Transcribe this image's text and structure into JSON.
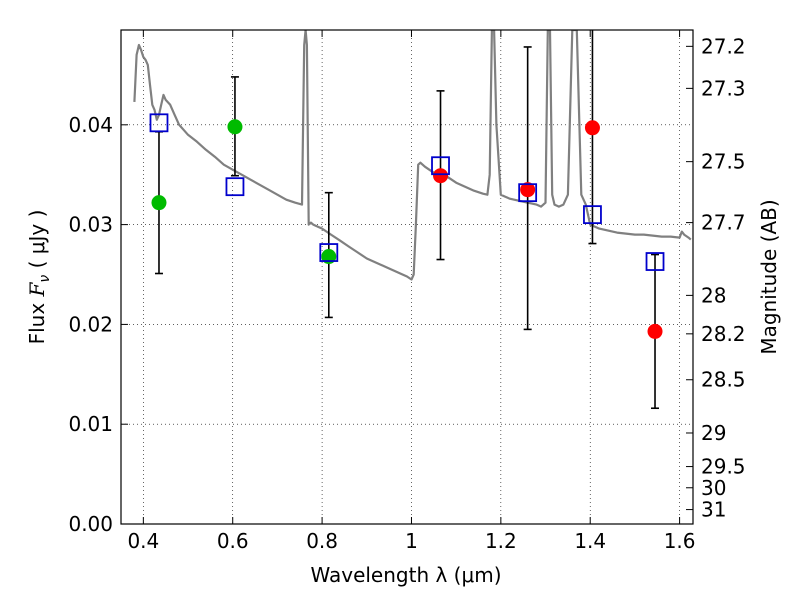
{
  "chart_data": {
    "type": "scatter",
    "title": "",
    "xlabel": "Wavelength  λ (μm)",
    "ylabel": "Flux  F_ν  ( μJy )",
    "ylabel_parts": {
      "prefix": "Flux  ",
      "symbol": "F",
      "subscript": "ν",
      "suffix": "  ( μJy )"
    },
    "y2label": "Magnitude (AB)",
    "xlim": [
      0.35,
      1.63
    ],
    "ylim": [
      0.0,
      0.0495
    ],
    "grid": true,
    "grid_style": "dotted",
    "x_ticks": [
      0.4,
      0.6,
      0.8,
      1.0,
      1.2,
      1.4,
      1.6
    ],
    "x_tick_labels": [
      "0.4",
      "0.6",
      "0.8",
      "1",
      "1.2",
      "1.4",
      "1.6"
    ],
    "y_ticks": [
      0.0,
      0.01,
      0.02,
      0.03,
      0.04
    ],
    "y_tick_labels": [
      "0.00",
      "0.01",
      "0.02",
      "0.03",
      "0.04"
    ],
    "y2_ticks": [
      "27.2",
      "27.3",
      "27.5",
      "27.7",
      "28",
      "28.2",
      "28.5",
      "29",
      "29.5",
      "30",
      "31"
    ],
    "colors": {
      "model": "#808080",
      "green": "#00bb00",
      "red": "#ff0000",
      "square": "#0000cc",
      "errorbar": "#000000"
    },
    "series": [
      {
        "kind": "model_spectrum",
        "style": "line",
        "x": [
          0.38,
          0.385,
          0.39,
          0.395,
          0.4,
          0.405,
          0.41,
          0.415,
          0.42,
          0.425,
          0.43,
          0.435,
          0.44,
          0.445,
          0.45,
          0.46,
          0.47,
          0.48,
          0.49,
          0.5,
          0.52,
          0.54,
          0.56,
          0.58,
          0.6,
          0.62,
          0.64,
          0.66,
          0.68,
          0.7,
          0.72,
          0.74,
          0.755,
          0.76,
          0.763,
          0.766,
          0.77,
          0.775,
          0.78,
          0.8,
          0.82,
          0.84,
          0.86,
          0.88,
          0.9,
          0.92,
          0.94,
          0.96,
          0.98,
          0.99,
          1.0,
          1.005,
          1.01,
          1.015,
          1.02,
          1.03,
          1.04,
          1.05,
          1.06,
          1.07,
          1.08,
          1.09,
          1.1,
          1.12,
          1.14,
          1.16,
          1.17,
          1.175,
          1.18,
          1.185,
          1.19,
          1.2,
          1.21,
          1.22,
          1.24,
          1.26,
          1.28,
          1.29,
          1.3,
          1.305,
          1.31,
          1.315,
          1.32,
          1.33,
          1.34,
          1.35,
          1.36,
          1.37,
          1.38,
          1.39,
          1.4,
          1.41,
          1.42,
          1.44,
          1.46,
          1.48,
          1.5,
          1.52,
          1.54,
          1.56,
          1.58,
          1.6,
          1.605,
          1.61,
          1.62,
          1.625
        ],
        "y": [
          0.0423,
          0.047,
          0.048,
          0.0475,
          0.0468,
          0.0465,
          0.046,
          0.044,
          0.042,
          0.0415,
          0.0405,
          0.041,
          0.042,
          0.043,
          0.0425,
          0.042,
          0.041,
          0.04,
          0.0395,
          0.039,
          0.0383,
          0.0375,
          0.0368,
          0.036,
          0.0355,
          0.035,
          0.0345,
          0.034,
          0.0335,
          0.033,
          0.0325,
          0.0322,
          0.032,
          0.048,
          0.0495,
          0.048,
          0.03,
          0.0302,
          0.03,
          0.0296,
          0.029,
          0.0284,
          0.0278,
          0.0272,
          0.0266,
          0.0262,
          0.0258,
          0.0254,
          0.025,
          0.0248,
          0.0245,
          0.025,
          0.03,
          0.036,
          0.0362,
          0.0358,
          0.0355,
          0.0352,
          0.035,
          0.0345,
          0.0348,
          0.0345,
          0.0342,
          0.0338,
          0.0334,
          0.0331,
          0.033,
          0.035,
          0.0495,
          0.0495,
          0.04,
          0.033,
          0.0328,
          0.0326,
          0.0324,
          0.0322,
          0.032,
          0.0318,
          0.0322,
          0.0495,
          0.0495,
          0.033,
          0.032,
          0.0318,
          0.032,
          0.033,
          0.0495,
          0.0495,
          0.033,
          0.032,
          0.03,
          0.0298,
          0.0296,
          0.0294,
          0.0292,
          0.0291,
          0.029,
          0.029,
          0.0289,
          0.0288,
          0.0288,
          0.0287,
          0.0293,
          0.029,
          0.0287,
          0.0285
        ]
      },
      {
        "kind": "observed_green",
        "style": "circle",
        "x": [
          0.435,
          0.605,
          0.815
        ],
        "y": [
          0.0322,
          0.0398,
          0.0268
        ]
      },
      {
        "kind": "observed_red",
        "style": "circle",
        "x": [
          1.065,
          1.26,
          1.405,
          1.545
        ],
        "y": [
          0.0349,
          0.0335,
          0.0397,
          0.0193
        ]
      },
      {
        "kind": "model_photometry",
        "style": "square",
        "x": [
          0.435,
          0.605,
          0.815,
          1.065,
          1.26,
          1.405,
          1.545
        ],
        "y": [
          0.0402,
          0.0338,
          0.0272,
          0.0359,
          0.0332,
          0.031,
          0.0263
        ]
      },
      {
        "kind": "errorbars",
        "style": "errorbar",
        "x": [
          0.435,
          0.605,
          0.815,
          1.065,
          1.26,
          1.405,
          1.545
        ],
        "low": [
          0.0251,
          0.0349,
          0.0207,
          0.0265,
          0.0195,
          0.0281,
          0.0116
        ],
        "high": [
          0.0393,
          0.0448,
          0.0332,
          0.0434,
          0.0478,
          0.05,
          0.027
        ]
      }
    ]
  }
}
